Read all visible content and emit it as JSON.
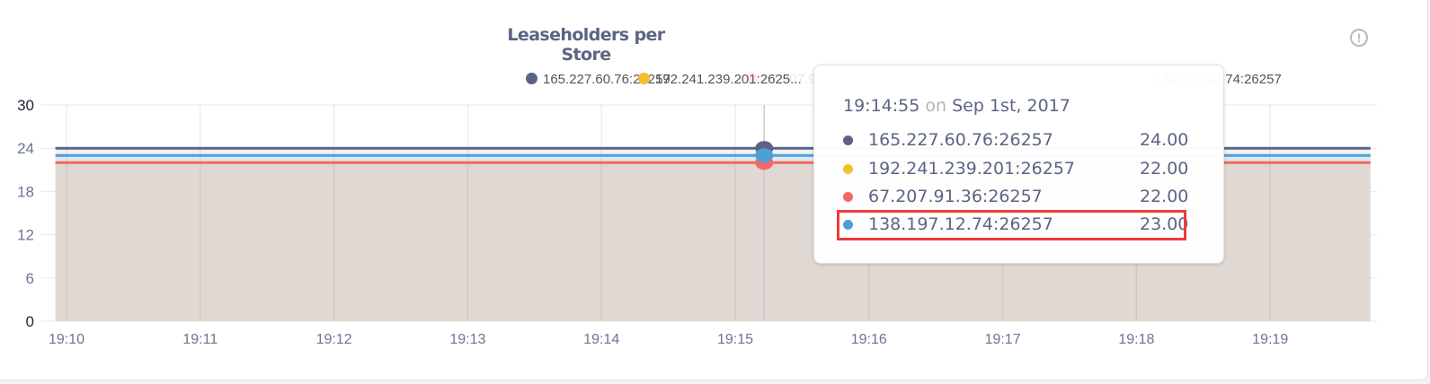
{
  "chart_data": {
    "type": "area",
    "title": "Leaseholders per Store",
    "legend_placement": "top",
    "grid": true,
    "ylim": [
      0,
      30
    ],
    "yticks": [
      0,
      6,
      12,
      18,
      24,
      30
    ],
    "xticks": [
      "19:10",
      "19:11",
      "19:12",
      "19:13",
      "19:14",
      "19:15",
      "19:16",
      "19:17",
      "19:18",
      "19:19"
    ],
    "xrange": [
      "19:09:55",
      "19:19:45"
    ],
    "series": [
      {
        "name": "165.227.60.76:26257",
        "legend_label": "165.227.60.76:26257",
        "color": "#5b6583",
        "values": [
          24,
          24
        ]
      },
      {
        "name": "192.241.239.201:26257",
        "legend_label": "192.241.239.201:2625...",
        "color": "#f4bf2a",
        "values": [
          22,
          22
        ]
      },
      {
        "name": "67.207.91.36:26257",
        "legend_label": "67.207.91.36:26257",
        "color": "#f16969",
        "values": [
          22,
          22
        ]
      },
      {
        "name": "138.197.12.74:26257",
        "legend_label": "138.197.12.74:26257",
        "color": "#4e9fd6",
        "values": [
          23,
          23
        ]
      }
    ],
    "hover_x": "19:15:13"
  },
  "tooltip": {
    "time": "19:14:55",
    "on": "on",
    "date": "Sep 1st, 2017",
    "rows": [
      {
        "name": "165.227.60.76:26257",
        "value": "24.00",
        "color": "#5b6583"
      },
      {
        "name": "192.241.239.201:26257",
        "value": "22.00",
        "color": "#f4bf2a"
      },
      {
        "name": "67.207.91.36:26257",
        "value": "22.00",
        "color": "#f16969"
      },
      {
        "name": "138.197.12.74:26257",
        "value": "23.00",
        "color": "#4e9fd6"
      }
    ],
    "highlighted_row": 3,
    "highlight_color": "#f03a3a"
  },
  "icons": {
    "info": "alert-circle-icon"
  }
}
